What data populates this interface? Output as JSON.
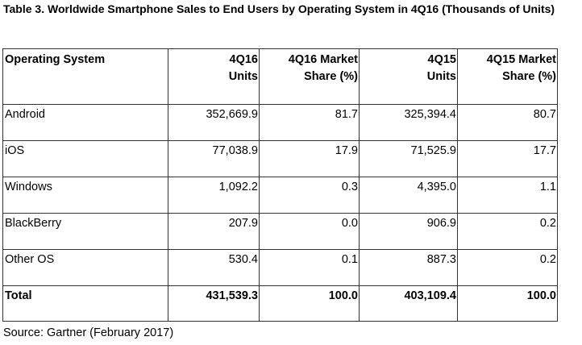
{
  "title": "Table 3. Worldwide Smartphone Sales to End Users by Operating System in 4Q16 (Thousands of Units)",
  "headers": [
    [
      "Operating System"
    ],
    [
      "4Q16",
      "Units"
    ],
    [
      "4Q16 Market",
      "Share (%)"
    ],
    [
      "4Q15",
      "Units"
    ],
    [
      "4Q15 Market",
      "Share (%)"
    ]
  ],
  "rows": [
    [
      "Android",
      "352,669.9",
      "81.7",
      "325,394.4",
      "80.7"
    ],
    [
      "iOS",
      "77,038.9",
      "17.9",
      "71,525.9",
      "17.7"
    ],
    [
      "Windows",
      "1,092.2",
      "0.3",
      "4,395.0",
      "1.1"
    ],
    [
      "BlackBerry",
      "207.9",
      "0.0",
      "906.9",
      "0.2"
    ],
    [
      "Other OS",
      "530.4",
      "0.1",
      "887.3",
      "0.2"
    ]
  ],
  "total": [
    "Total",
    "431,539.3",
    "100.0",
    "403,109.4",
    "100.0"
  ],
  "source": "Source: Gartner (February 2017)"
}
